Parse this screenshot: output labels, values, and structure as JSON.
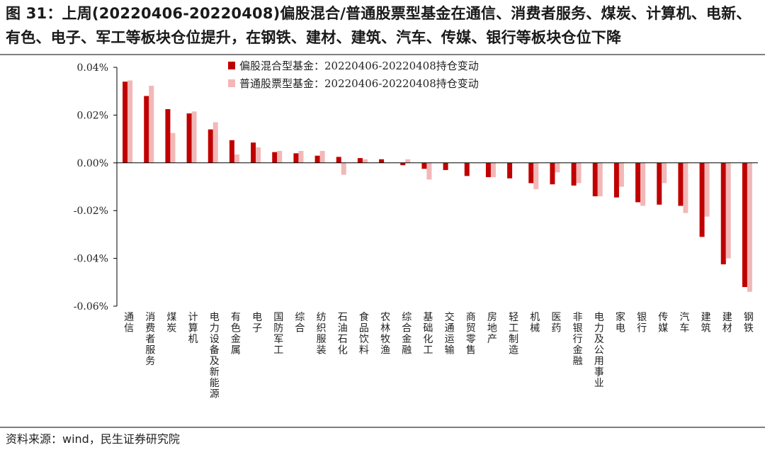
{
  "header": {
    "title": "图 31：上周(20220406-20220408)偏股混合/普通股票型基金在通信、消费者服务、煤炭、计算机、电新、有色、电子、军工等板块仓位提升，在钢铁、建材、建筑、汽车、传媒、银行等板块仓位下降"
  },
  "footer": {
    "source": "资料来源：wind，民生证券研究院"
  },
  "chart_data": {
    "type": "bar",
    "categories": [
      "通信",
      "消费者服务",
      "煤炭",
      "计算机",
      "电力设备及新能源",
      "有色金属",
      "电子",
      "国防军工",
      "综合",
      "纺织服装",
      "石油石化",
      "食品饮料",
      "农林牧渔",
      "综合金融",
      "基础化工",
      "交通运输",
      "商贸零售",
      "房地产",
      "轻工制造",
      "机械",
      "医药",
      "非银行金融",
      "电力及公用事业",
      "家电",
      "银行",
      "传媒",
      "汽车",
      "建筑",
      "建材",
      "钢铁"
    ],
    "series": [
      {
        "name": "偏股混合型基金：20220406-20220408持仓变动",
        "color": "#c00000",
        "values": [
          0.034,
          0.028,
          0.0225,
          0.0207,
          0.014,
          0.0095,
          0.0085,
          0.0045,
          0.004,
          0.003,
          0.0025,
          0.002,
          0.0015,
          -0.001,
          -0.0025,
          -0.003,
          -0.0055,
          -0.006,
          -0.0065,
          -0.0085,
          -0.009,
          -0.0095,
          -0.014,
          -0.0145,
          -0.0165,
          -0.0175,
          -0.018,
          -0.031,
          -0.0425,
          -0.052
        ]
      },
      {
        "name": "普通股票型基金：20220406-20220408持仓变动",
        "color": "#f2b8b8",
        "values": [
          0.0345,
          0.0323,
          0.0125,
          0.0215,
          0.017,
          0.0035,
          0.0065,
          0.005,
          0.005,
          0.005,
          -0.005,
          0.0015,
          0.0,
          0.0015,
          -0.007,
          0.0,
          0.0,
          -0.006,
          0.0,
          -0.011,
          -0.004,
          -0.0085,
          -0.014,
          -0.01,
          -0.018,
          -0.0085,
          -0.021,
          -0.0225,
          -0.04,
          -0.054
        ]
      }
    ],
    "ylim": [
      -0.06,
      0.04
    ],
    "yticks": [
      0.04,
      0.02,
      0.0,
      -0.02,
      -0.04,
      -0.06
    ],
    "ytick_labels": [
      "0.04%",
      "0.02%",
      "0.00%",
      "-0.02%",
      "-0.04%",
      "-0.06%"
    ],
    "xlabel": "",
    "ylabel": "",
    "legend_position": "top-center",
    "grid": false
  }
}
